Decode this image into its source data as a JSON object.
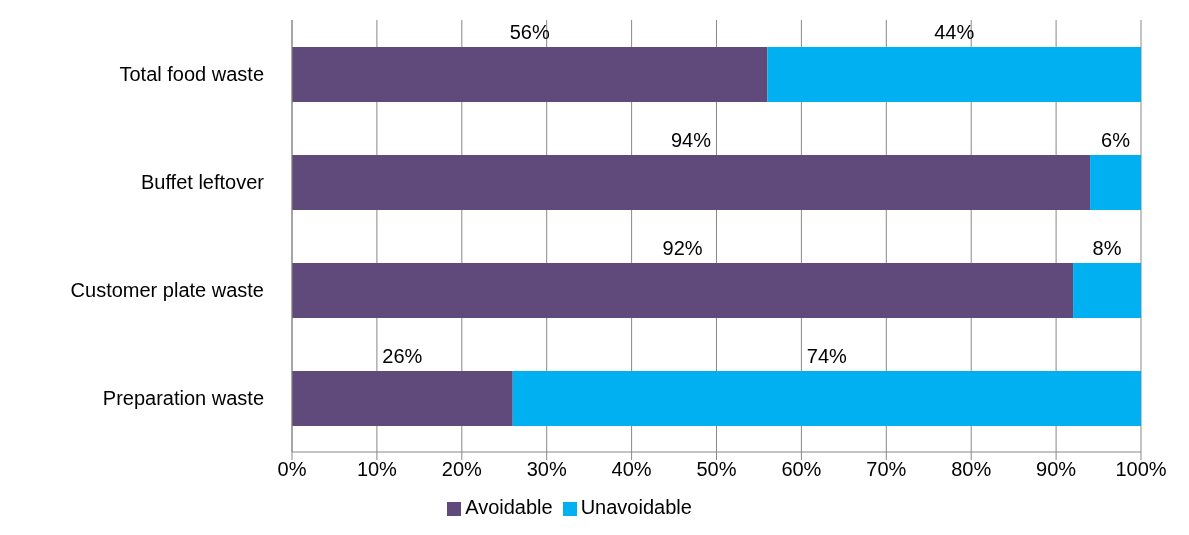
{
  "chart_data": {
    "type": "bar",
    "orientation": "horizontal",
    "stacked": true,
    "categories": [
      "Total food waste",
      "Buffet leftover",
      "Customer plate waste",
      "Preparation waste"
    ],
    "series": [
      {
        "name": "Avoidable",
        "color": "#604a7b",
        "values": [
          56,
          94,
          92,
          26
        ],
        "value_labels": [
          "56%",
          "94%",
          "92%",
          "26%"
        ]
      },
      {
        "name": "Unavoidable",
        "color": "#00b0f0",
        "values": [
          44,
          6,
          8,
          74
        ],
        "value_labels": [
          "44%",
          "6%",
          "8%",
          "74%"
        ]
      }
    ],
    "xlim": [
      0,
      100
    ],
    "xticks": [
      {
        "value": 0,
        "label": "0%"
      },
      {
        "value": 10,
        "label": "10%"
      },
      {
        "value": 20,
        "label": "20%"
      },
      {
        "value": 30,
        "label": "30%"
      },
      {
        "value": 40,
        "label": "40%"
      },
      {
        "value": 50,
        "label": "50%"
      },
      {
        "value": 60,
        "label": "60%"
      },
      {
        "value": 70,
        "label": "70%"
      },
      {
        "value": 80,
        "label": "80%"
      },
      {
        "value": 90,
        "label": "90%"
      },
      {
        "value": 100,
        "label": "100%"
      }
    ],
    "grid": "x",
    "legend": "bottom"
  }
}
